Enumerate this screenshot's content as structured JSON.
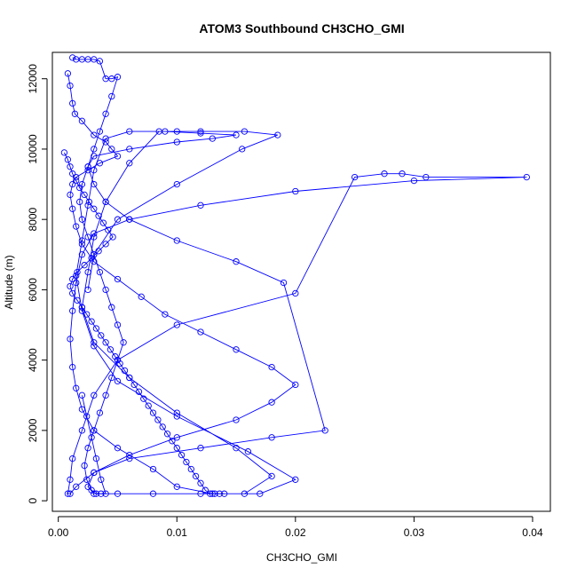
{
  "chart_data": {
    "type": "scatter",
    "title": "ATOM3 Southbound CH3CHO_GMI",
    "xlabel": "CH3CHO_GMI",
    "ylabel": "Altitude (m)",
    "xlim": [
      -0.0005,
      0.0415
    ],
    "ylim": [
      -300,
      12750
    ],
    "x_ticks": [
      0.0,
      0.01,
      0.02,
      0.03,
      0.04
    ],
    "x_tick_labels": [
      "0.00",
      "0.01",
      "0.02",
      "0.03",
      "0.04"
    ],
    "y_ticks": [
      0,
      2000,
      4000,
      6000,
      8000,
      10000,
      12000
    ],
    "y_tick_labels": [
      "0",
      "2000",
      "4000",
      "6000",
      "8000",
      "10000",
      "12000"
    ],
    "grid": false,
    "marker": "open-circle",
    "colors": {
      "series": "#0000ff",
      "axis": "#000000",
      "background": "#ffffff"
    },
    "series": [
      {
        "x": [
          0.0008,
          0.001,
          0.0012,
          0.0014,
          0.002,
          0.003,
          0.004,
          0.0045,
          0.005,
          0.0035,
          0.0025,
          0.0015,
          0.0012,
          0.001,
          0.0012,
          0.0015,
          0.002,
          0.003,
          0.005,
          0.007,
          0.009,
          0.012,
          0.015,
          0.018,
          0.02,
          0.018,
          0.015,
          0.01,
          0.006,
          0.003,
          0.0015,
          0.001,
          0.0008,
          0.001,
          0.0012,
          0.002,
          0.003,
          0.005,
          0.01,
          0.02,
          0.025,
          0.0275,
          0.029,
          0.031,
          0.0395,
          0.03,
          0.02,
          0.012,
          0.006,
          0.003,
          0.002,
          0.0015,
          0.0012,
          0.001,
          0.0012,
          0.0015,
          0.002,
          0.003,
          0.005,
          0.008,
          0.01,
          0.013,
          0.017,
          0.02,
          0.016,
          0.01,
          0.005,
          0.003,
          0.002,
          0.0015,
          0.002,
          0.0025,
          0.003,
          0.004,
          0.006,
          0.009,
          0.012,
          0.015,
          0.013,
          0.01,
          0.006,
          0.003,
          0.0025,
          0.003,
          0.004,
          0.006,
          0.01,
          0.015,
          0.019,
          0.0225,
          0.018,
          0.012,
          0.006,
          0.003,
          0.0025,
          0.003,
          0.005,
          0.008,
          0.012,
          0.0157,
          0.018,
          0.015,
          0.01,
          0.006,
          0.003,
          0.002,
          0.0025,
          0.003,
          0.004,
          0.006,
          0.0085,
          0.01,
          0.012,
          0.0157,
          0.0185,
          0.0155,
          0.01,
          0.005,
          0.003,
          0.0025
        ],
        "y": [
          12150,
          11800,
          11300,
          11000,
          10800,
          10400,
          10200,
          10000,
          9800,
          9600,
          9400,
          9200,
          9000,
          8700,
          8300,
          7800,
          7300,
          6800,
          6300,
          5800,
          5300,
          4800,
          4300,
          3800,
          3300,
          2800,
          2300,
          1800,
          1300,
          800,
          400,
          200,
          200,
          600,
          1200,
          2000,
          3000,
          4000,
          5000,
          5900,
          9200,
          9300,
          9300,
          9200,
          9200,
          9100,
          8800,
          8400,
          8000,
          7600,
          7000,
          6200,
          5400,
          4600,
          3800,
          3200,
          2600,
          2000,
          1500,
          900,
          400,
          200,
          200,
          600,
          1400,
          2400,
          3400,
          4400,
          5400,
          6400,
          7400,
          8400,
          9400,
          10300,
          10500,
          10500,
          10450,
          10400,
          10300,
          10200,
          10000,
          9800,
          9500,
          9000,
          8500,
          8000,
          7400,
          6800,
          6200,
          2000,
          1800,
          1500,
          1200,
          800,
          400,
          200,
          200,
          200,
          200,
          200,
          700,
          1500,
          2500,
          3500,
          4500,
          5500,
          6500,
          7500,
          8500,
          9600,
          10500,
          10500,
          10500,
          10500,
          10400,
          10000,
          9000,
          8000,
          7000,
          6000
        ]
      },
      {
        "x": [
          0.0005,
          0.0008,
          0.001,
          0.0012,
          0.0015,
          0.0018,
          0.0022,
          0.0026,
          0.003,
          0.0034,
          0.0038,
          0.0042,
          0.0046,
          0.004,
          0.0034,
          0.0028,
          0.0022,
          0.0016,
          0.0012,
          0.001,
          0.0012,
          0.0016,
          0.002,
          0.0024,
          0.0028,
          0.0032,
          0.0036,
          0.004,
          0.0044,
          0.0048,
          0.0052,
          0.0056,
          0.006,
          0.0064,
          0.0068,
          0.0072,
          0.0076,
          0.008,
          0.0084,
          0.0088,
          0.0092,
          0.0096,
          0.01,
          0.0104,
          0.0108,
          0.0112,
          0.0116,
          0.012,
          0.0124,
          0.0128,
          0.0132,
          0.0136,
          0.014
        ],
        "y": [
          9900,
          9700,
          9500,
          9300,
          9100,
          8900,
          8700,
          8500,
          8300,
          8100,
          7900,
          7700,
          7500,
          7300,
          7100,
          6900,
          6700,
          6500,
          6300,
          6100,
          5900,
          5700,
          5500,
          5300,
          5100,
          4900,
          4700,
          4500,
          4300,
          4100,
          3900,
          3700,
          3500,
          3300,
          3100,
          2900,
          2700,
          2500,
          2300,
          2100,
          1900,
          1700,
          1500,
          1300,
          1100,
          900,
          700,
          500,
          300,
          200,
          200,
          200,
          200
        ]
      },
      {
        "x": [
          0.0012,
          0.0015,
          0.002,
          0.0025,
          0.003,
          0.0035,
          0.004,
          0.0045,
          0.005,
          0.0045,
          0.004,
          0.0035,
          0.003,
          0.0025,
          0.002,
          0.0018,
          0.002,
          0.0025,
          0.003,
          0.0035,
          0.004,
          0.0045,
          0.005,
          0.0055,
          0.005,
          0.0045,
          0.004,
          0.0035,
          0.003,
          0.0025,
          0.0022,
          0.0024,
          0.0028,
          0.0032,
          0.0036,
          0.004,
          0.0036,
          0.0032,
          0.0028,
          0.0024,
          0.002
        ],
        "y": [
          12600,
          12550,
          12550,
          12550,
          12550,
          12500,
          12000,
          12000,
          12050,
          11500,
          11000,
          10500,
          10000,
          9500,
          9000,
          8500,
          8000,
          7500,
          7000,
          6500,
          6000,
          5500,
          5000,
          4500,
          4000,
          3500,
          3000,
          2500,
          2000,
          1500,
          1000,
          600,
          300,
          200,
          200,
          200,
          600,
          1200,
          1800,
          2400,
          3000
        ]
      }
    ]
  }
}
